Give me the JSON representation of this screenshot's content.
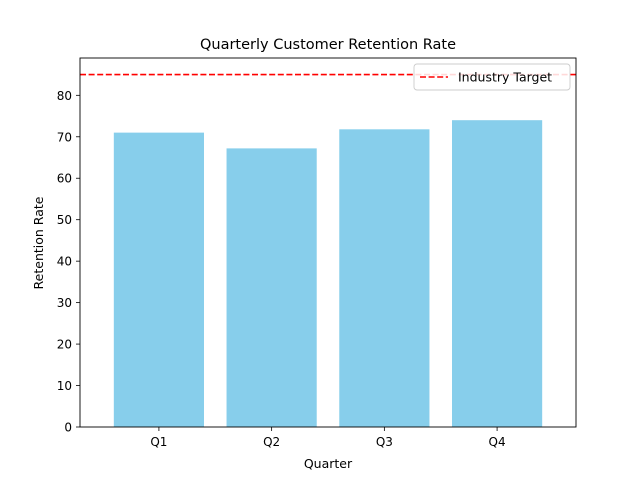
{
  "chart_data": {
    "type": "bar",
    "title": "Quarterly Customer Retention Rate",
    "xlabel": "Quarter",
    "ylabel": "Retention Rate",
    "categories": [
      "Q1",
      "Q2",
      "Q3",
      "Q4"
    ],
    "values": [
      71.0,
      67.2,
      71.8,
      74.0
    ],
    "ylim": [
      0,
      89
    ],
    "yticks": [
      0,
      10,
      20,
      30,
      40,
      50,
      60,
      70,
      80
    ],
    "bar_color": "#87ceeb",
    "grid": false,
    "reference_line": {
      "label": "Industry Target",
      "value": 85,
      "color": "#ff0000",
      "style": "dashed"
    },
    "legend": {
      "placement": "top-right",
      "entries": [
        "Industry Target"
      ]
    }
  }
}
